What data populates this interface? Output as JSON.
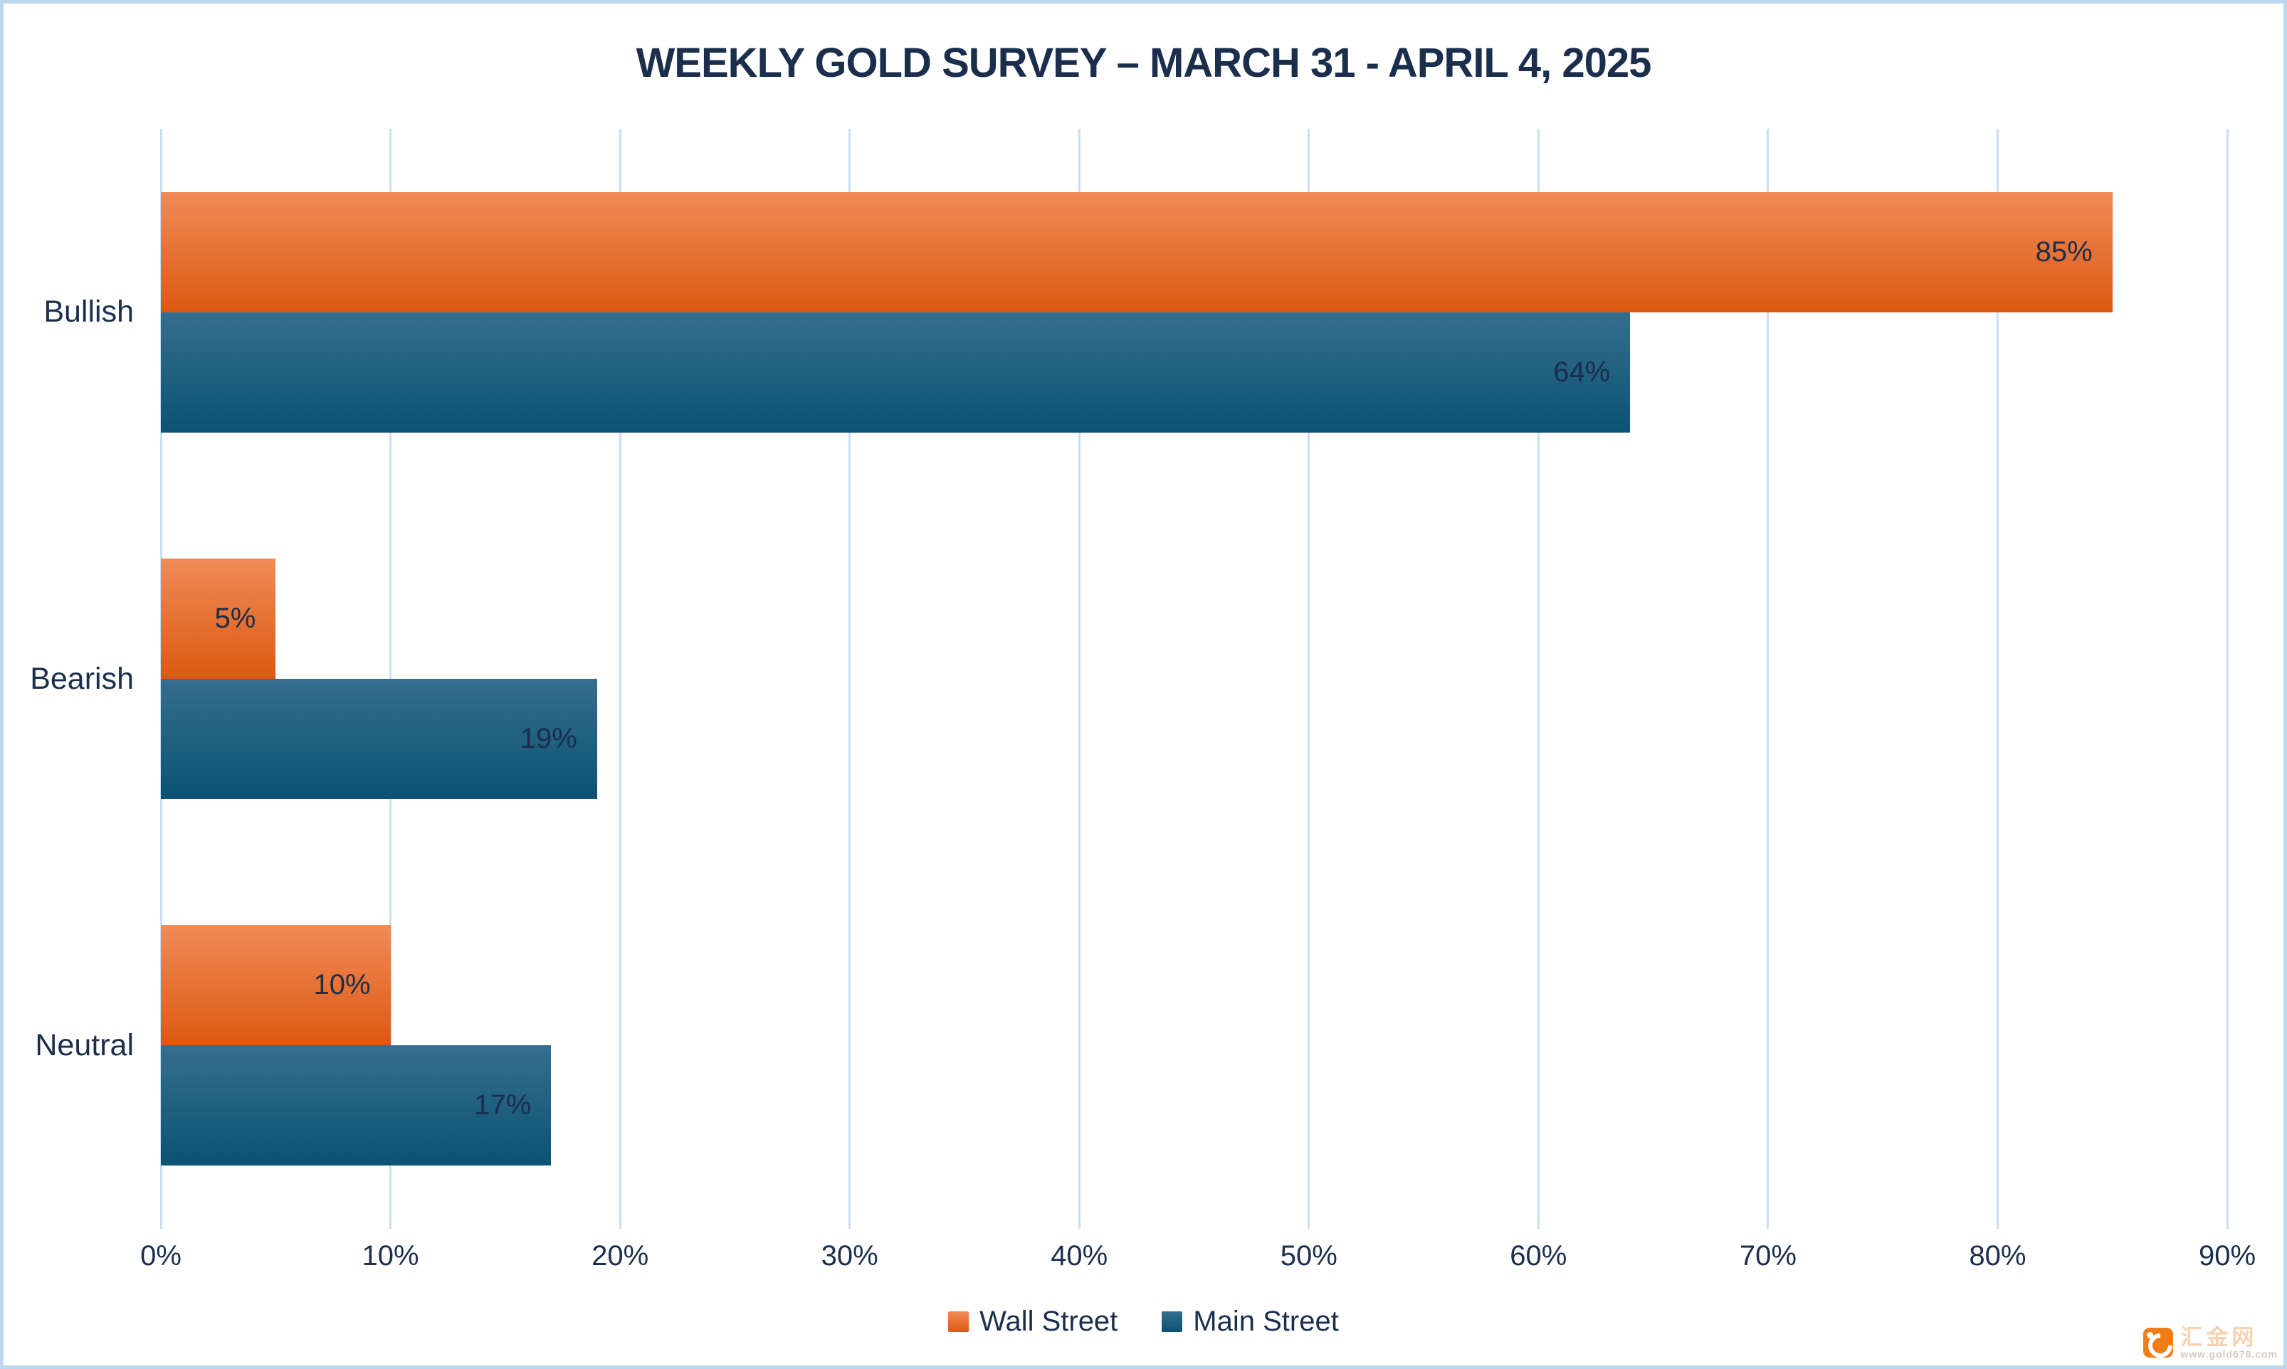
{
  "title": "WEEKLY GOLD SURVEY – MARCH 31 - APRIL 4, 2025",
  "chart_data": {
    "type": "bar",
    "orientation": "horizontal",
    "title": "WEEKLY GOLD SURVEY – MARCH 31 - APRIL 4, 2025",
    "categories": [
      "Bullish",
      "Bearish",
      "Neutral"
    ],
    "series": [
      {
        "name": "Wall Street",
        "color": "#E8702E",
        "gradient": [
          "#F18B57",
          "#DB5912"
        ],
        "values": [
          85,
          5,
          10
        ]
      },
      {
        "name": "Main Street",
        "color": "#1E5F80",
        "gradient": [
          "#356E8E",
          "#0B5273"
        ],
        "values": [
          64,
          19,
          17
        ]
      }
    ],
    "value_suffix": "%",
    "xlim": [
      0,
      90
    ],
    "xticks": [
      "0%",
      "10%",
      "20%",
      "30%",
      "40%",
      "50%",
      "60%",
      "70%",
      "80%",
      "90%"
    ],
    "grid": "vertical",
    "legend_position": "bottom"
  },
  "colors": {
    "text_navy": "#1B2E4C",
    "gridline": "#CBDFF1",
    "canvas_border": "#BDD7EE",
    "background": "#FFFFFF",
    "watermark_orange": "#F07D15"
  },
  "watermark": {
    "site_name": "汇金网",
    "site_url": "www.gold678.com"
  }
}
